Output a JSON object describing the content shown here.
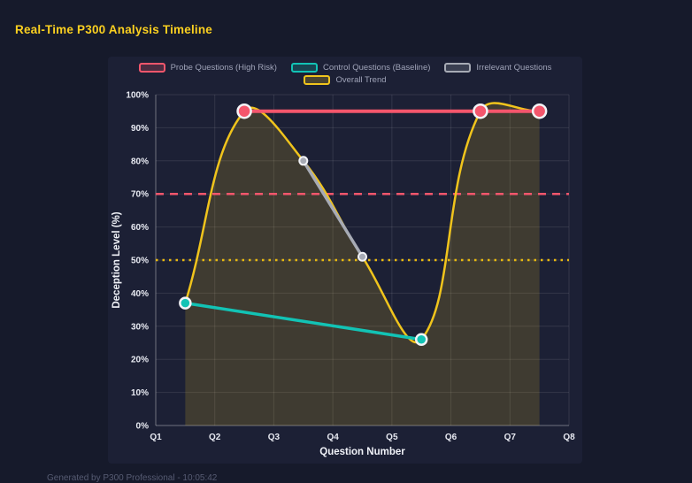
{
  "header": {
    "title": "Real-Time P300 Analysis Timeline"
  },
  "footer": {
    "text": "Generated by P300 Professional - 10:05:42"
  },
  "theme": {
    "page_bg": "#161a2b",
    "panel_bg": "#1c2035",
    "title_color": "#fbd020",
    "grid_color": "rgba(255,255,255,0.10)",
    "axis_line_color": "rgba(255,255,255,0.30)",
    "tick_label_color": "#e8eaf2",
    "legend_text_color": "#9fa3b8",
    "point_border_color": "#f2f3f7"
  },
  "chart_data": {
    "type": "line",
    "title": "Real-Time P300 Analysis Timeline",
    "xlabel": "Question Number",
    "ylabel": "Deception Level (%)",
    "x_ticks": [
      "Q1",
      "Q2",
      "Q3",
      "Q4",
      "Q5",
      "Q6",
      "Q7",
      "Q8"
    ],
    "x_range": [
      1,
      8
    ],
    "ylim": [
      0,
      100
    ],
    "y_tick_step": 10,
    "y_tick_suffix": "%",
    "grid": true,
    "legend_position": "top",
    "series": [
      {
        "name": "Overall Trend",
        "type": "spline",
        "color": "#f0c41c",
        "fill": true,
        "fill_alpha": 0.17,
        "line_width": 2.5,
        "point_radius": 0,
        "legend_row": 1,
        "points": [
          {
            "x": 1.5,
            "y": 37
          },
          {
            "x": 2.5,
            "y": 95
          },
          {
            "x": 3.5,
            "y": 80
          },
          {
            "x": 4.5,
            "y": 51
          },
          {
            "x": 5.5,
            "y": 26
          },
          {
            "x": 6.5,
            "y": 95
          },
          {
            "x": 7.5,
            "y": 95
          }
        ]
      },
      {
        "name": "Irrelevant Questions",
        "type": "line",
        "color": "#a7abb5",
        "fill": false,
        "line_width": 3.5,
        "point_radius": 4.5,
        "point_border": 2,
        "legend_row": 0,
        "points": [
          {
            "x": 3.5,
            "y": 80
          },
          {
            "x": 4.5,
            "y": 51
          }
        ]
      },
      {
        "name": "Control Questions (Baseline)",
        "type": "line",
        "color": "#12c3b5",
        "fill": false,
        "line_width": 3.5,
        "point_radius": 6,
        "point_border": 2.5,
        "legend_row": 0,
        "points": [
          {
            "x": 1.5,
            "y": 37
          },
          {
            "x": 5.5,
            "y": 26
          }
        ]
      },
      {
        "name": "Probe Questions (High Risk)",
        "type": "line",
        "color": "#f4566c",
        "fill": false,
        "line_width": 4,
        "point_radius": 7.5,
        "point_border": 2.5,
        "legend_row": 0,
        "points": [
          {
            "x": 2.5,
            "y": 95
          },
          {
            "x": 6.5,
            "y": 95
          },
          {
            "x": 7.5,
            "y": 95
          }
        ]
      }
    ],
    "legend_order": [
      "Probe Questions (High Risk)",
      "Control Questions (Baseline)",
      "Irrelevant Questions",
      "Overall Trend"
    ],
    "thresholds": [
      {
        "y": 70,
        "color": "#f4566c",
        "style": "dashed"
      },
      {
        "y": 50,
        "color": "#e9ba10",
        "style": "dotted"
      }
    ]
  }
}
